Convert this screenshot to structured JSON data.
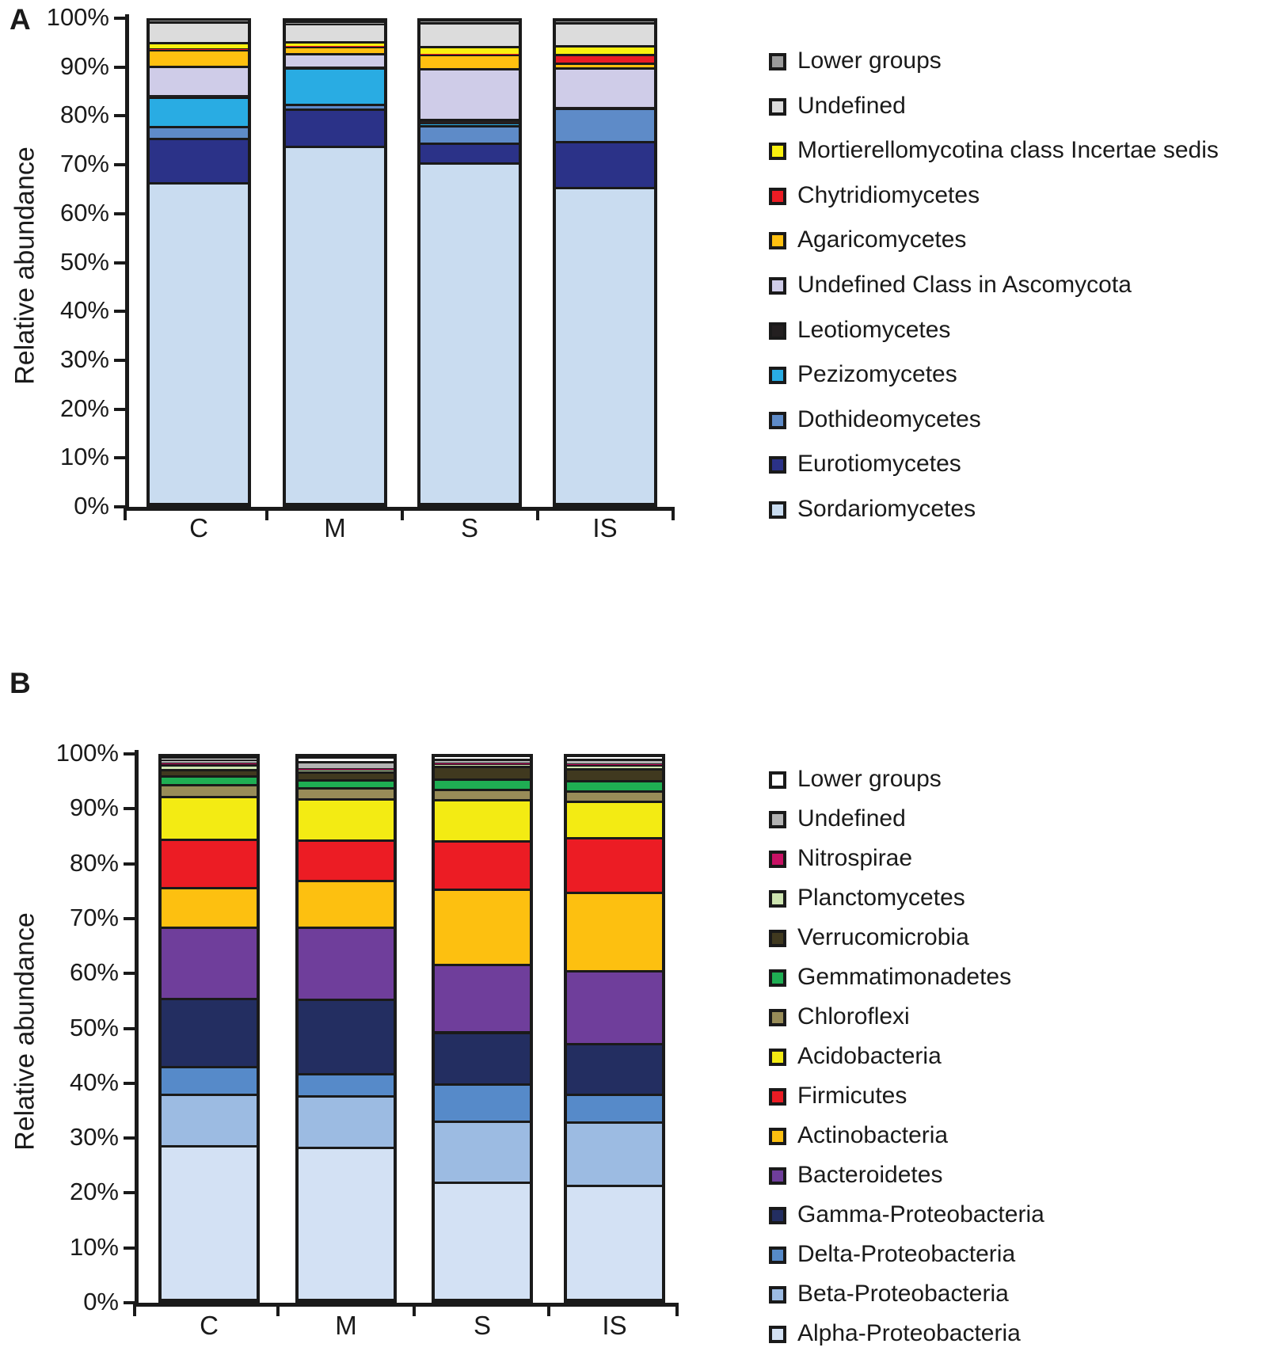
{
  "figure": {
    "panel_a_label": "A",
    "panel_b_label": "B",
    "ylabel": "Relative abundance"
  },
  "chart_data": [
    {
      "id": "A",
      "type": "bar",
      "stacked": true,
      "title": "",
      "xlabel": "",
      "ylabel": "Relative abundance",
      "ylim": [
        0,
        100
      ],
      "grid": false,
      "legend_position": "right",
      "yticks": [
        "0%",
        "10%",
        "20%",
        "30%",
        "40%",
        "50%",
        "60%",
        "70%",
        "80%",
        "90%",
        "100%"
      ],
      "categories": [
        "C",
        "M",
        "S",
        "IS"
      ],
      "series": [
        {
          "name": "Sordariomycetes",
          "color": "#C9DCF0",
          "values": [
            66.5,
            74.0,
            70.6,
            65.4
          ]
        },
        {
          "name": "Eurotiomycetes",
          "color": "#2B3288",
          "values": [
            9.2,
            7.7,
            4.0,
            9.5
          ]
        },
        {
          "name": "Dothideomycetes",
          "color": "#5E8BC8",
          "values": [
            2.4,
            0.9,
            3.7,
            7.0
          ]
        },
        {
          "name": "Pezizomycetes",
          "color": "#29ACE3",
          "values": [
            6.1,
            7.6,
            0.1,
            0.1
          ]
        },
        {
          "name": "Leotiomycetes",
          "color": "#231F20",
          "values": [
            0.3,
            0.2,
            1.2,
            0.1
          ]
        },
        {
          "name": "Undefined Class in Ascomycota",
          "color": "#CFCCE8",
          "values": [
            6.0,
            2.8,
            10.4,
            8.2
          ]
        },
        {
          "name": "Agaricomycetes",
          "color": "#FFC010",
          "values": [
            3.5,
            1.4,
            3.0,
            0.9
          ]
        },
        {
          "name": "Chytridiomycetes",
          "color": "#EC1C24",
          "values": [
            0.1,
            0.1,
            0.1,
            1.9
          ]
        },
        {
          "name": "Mortierellomycotina class Incertae sedis",
          "color": "#FAF00F",
          "values": [
            1.4,
            1.0,
            1.6,
            1.8
          ]
        },
        {
          "name": "Undefined",
          "color": "#DCDCDC",
          "values": [
            4.2,
            3.7,
            4.9,
            4.7
          ]
        },
        {
          "name": "Lower groups",
          "color": "#9B9B9B",
          "values": [
            0.3,
            0.6,
            0.4,
            0.4
          ]
        }
      ]
    },
    {
      "id": "B",
      "type": "bar",
      "stacked": true,
      "title": "",
      "xlabel": "",
      "ylabel": "Relative abundance",
      "ylim": [
        0,
        100
      ],
      "grid": false,
      "legend_position": "right",
      "yticks": [
        "0%",
        "10%",
        "20%",
        "30%",
        "40%",
        "50%",
        "60%",
        "70%",
        "80%",
        "90%",
        "100%"
      ],
      "categories": [
        "C",
        "M",
        "S",
        "IS"
      ],
      "series": [
        {
          "name": "Alpha-Proteobacteria",
          "color": "#D3E1F4",
          "values": [
            28.2,
            28.0,
            21.5,
            21.0
          ]
        },
        {
          "name": "Beta-Proteobacteria",
          "color": "#9CBBE2",
          "values": [
            9.5,
            9.4,
            11.3,
            11.6
          ]
        },
        {
          "name": "Delta-Proteobacteria",
          "color": "#568AC9",
          "values": [
            5.1,
            4.1,
            6.9,
            5.2
          ]
        },
        {
          "name": "Gamma-Proteobacteria",
          "color": "#232E61",
          "values": [
            12.6,
            13.8,
            9.5,
            9.3
          ]
        },
        {
          "name": "Bacteroidetes",
          "color": "#6F3E9B",
          "values": [
            13.2,
            13.3,
            12.5,
            13.4
          ]
        },
        {
          "name": "Actinobacteria",
          "color": "#FDC010",
          "values": [
            7.3,
            8.5,
            13.8,
            14.4
          ]
        },
        {
          "name": "Firmicutes",
          "color": "#EC1C24",
          "values": [
            8.8,
            7.5,
            9.0,
            10.2
          ]
        },
        {
          "name": "Acidobacteria",
          "color": "#F3EB13",
          "values": [
            7.9,
            7.6,
            7.5,
            6.7
          ]
        },
        {
          "name": "Chloroflexi",
          "color": "#988C58",
          "values": [
            2.2,
            2.0,
            2.0,
            1.9
          ]
        },
        {
          "name": "Gemmatimonadetes",
          "color": "#1FAE53",
          "values": [
            1.6,
            1.5,
            1.8,
            1.9
          ]
        },
        {
          "name": "Verrucomicrobia",
          "color": "#40391F",
          "values": [
            1.2,
            1.4,
            2.4,
            2.1
          ]
        },
        {
          "name": "Planctomycetes",
          "color": "#CDE4B0",
          "values": [
            0.9,
            0.4,
            0.3,
            0.7
          ]
        },
        {
          "name": "Nitrospirae",
          "color": "#C81164",
          "values": [
            0.3,
            0.3,
            0.2,
            0.2
          ]
        },
        {
          "name": "Undefined",
          "color": "#B3B3B3",
          "values": [
            0.5,
            1.2,
            0.8,
            0.9
          ]
        },
        {
          "name": "Lower groups",
          "color": "#FFFFFF",
          "values": [
            0.7,
            1.0,
            0.5,
            0.5
          ]
        }
      ]
    }
  ]
}
